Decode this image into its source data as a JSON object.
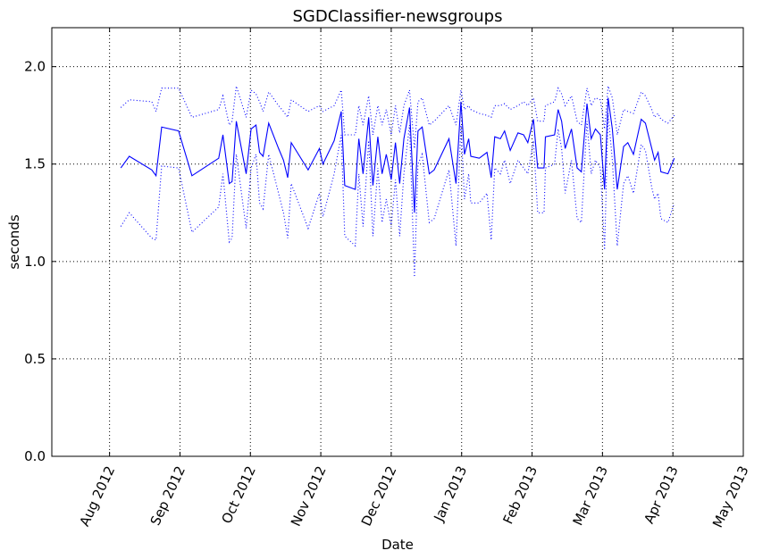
{
  "chart_data": {
    "type": "line",
    "title": "SGDClassifier-newsgroups",
    "x_label": "Date",
    "y_label": "seconds",
    "x": [
      0.16,
      0.28,
      0.6,
      0.66,
      0.74,
      0.98,
      1.17,
      1.55,
      1.61,
      1.7,
      1.74,
      1.8,
      1.94,
      2.01,
      2.08,
      2.13,
      2.18,
      2.26,
      2.4,
      2.47,
      2.53,
      2.58,
      2.82,
      2.98,
      3.03,
      3.19,
      3.29,
      3.34,
      3.49,
      3.54,
      3.6,
      3.68,
      3.74,
      3.81,
      3.87,
      3.93,
      4.0,
      4.06,
      4.12,
      4.18,
      4.26,
      4.33,
      4.38,
      4.44,
      4.54,
      4.61,
      4.82,
      4.92,
      4.99,
      5.04,
      5.1,
      5.13,
      5.25,
      5.36,
      5.42,
      5.47,
      5.55,
      5.61,
      5.69,
      5.8,
      5.88,
      5.94,
      6.02,
      6.08,
      6.17,
      6.19,
      6.32,
      6.37,
      6.42,
      6.47,
      6.56,
      6.64,
      6.7,
      6.78,
      6.84,
      6.9,
      6.97,
      7.03,
      7.08,
      7.14,
      7.21,
      7.3,
      7.36,
      7.44,
      7.55,
      7.61,
      7.7,
      7.74,
      7.79,
      7.83,
      7.93,
      8.02
    ],
    "series": [
      {
        "color": "#0000ff",
        "style": "solid",
        "values": [
          1.48,
          1.54,
          1.47,
          1.44,
          1.69,
          1.67,
          1.44,
          1.53,
          1.65,
          1.4,
          1.41,
          1.72,
          1.45,
          1.68,
          1.7,
          1.56,
          1.54,
          1.71,
          1.58,
          1.52,
          1.43,
          1.61,
          1.47,
          1.58,
          1.5,
          1.62,
          1.77,
          1.39,
          1.37,
          1.63,
          1.45,
          1.74,
          1.39,
          1.64,
          1.45,
          1.55,
          1.42,
          1.61,
          1.4,
          1.63,
          1.79,
          1.25,
          1.67,
          1.69,
          1.45,
          1.47,
          1.63,
          1.4,
          1.82,
          1.55,
          1.63,
          1.54,
          1.53,
          1.56,
          1.43,
          1.64,
          1.63,
          1.67,
          1.57,
          1.66,
          1.65,
          1.61,
          1.73,
          1.48,
          1.48,
          1.64,
          1.65,
          1.78,
          1.72,
          1.58,
          1.68,
          1.48,
          1.46,
          1.81,
          1.63,
          1.68,
          1.65,
          1.37,
          1.84,
          1.68,
          1.37,
          1.59,
          1.61,
          1.55,
          1.73,
          1.71,
          1.58,
          1.52,
          1.56,
          1.46,
          1.45,
          1.53
        ]
      },
      {
        "color": "#0000ff",
        "style": "dotted",
        "values": [
          1.79,
          1.83,
          1.82,
          1.77,
          1.89,
          1.89,
          1.74,
          1.78,
          1.85,
          1.7,
          1.72,
          1.9,
          1.74,
          1.88,
          1.86,
          1.82,
          1.77,
          1.87,
          1.8,
          1.77,
          1.74,
          1.83,
          1.77,
          1.8,
          1.77,
          1.8,
          1.88,
          1.65,
          1.65,
          1.8,
          1.7,
          1.85,
          1.65,
          1.8,
          1.7,
          1.78,
          1.65,
          1.8,
          1.66,
          1.8,
          1.88,
          1.58,
          1.82,
          1.84,
          1.7,
          1.72,
          1.8,
          1.7,
          1.88,
          1.78,
          1.8,
          1.78,
          1.76,
          1.75,
          1.74,
          1.8,
          1.8,
          1.81,
          1.78,
          1.8,
          1.82,
          1.8,
          1.84,
          1.72,
          1.72,
          1.8,
          1.82,
          1.89,
          1.86,
          1.8,
          1.85,
          1.72,
          1.7,
          1.89,
          1.8,
          1.84,
          1.83,
          1.68,
          1.9,
          1.84,
          1.65,
          1.78,
          1.77,
          1.76,
          1.87,
          1.85,
          1.78,
          1.74,
          1.76,
          1.73,
          1.71,
          1.75
        ]
      },
      {
        "color": "#0000ff",
        "style": "dotted",
        "values": [
          1.18,
          1.25,
          1.12,
          1.11,
          1.49,
          1.48,
          1.15,
          1.28,
          1.45,
          1.1,
          1.12,
          1.55,
          1.17,
          1.48,
          1.55,
          1.3,
          1.27,
          1.55,
          1.35,
          1.25,
          1.12,
          1.4,
          1.17,
          1.35,
          1.23,
          1.45,
          1.65,
          1.13,
          1.08,
          1.45,
          1.18,
          1.62,
          1.13,
          1.48,
          1.2,
          1.32,
          1.18,
          1.42,
          1.13,
          1.45,
          1.7,
          0.92,
          1.5,
          1.55,
          1.2,
          1.22,
          1.47,
          1.08,
          1.7,
          1.32,
          1.45,
          1.3,
          1.3,
          1.35,
          1.11,
          1.48,
          1.45,
          1.52,
          1.4,
          1.52,
          1.48,
          1.45,
          1.62,
          1.25,
          1.25,
          1.48,
          1.5,
          1.68,
          1.58,
          1.35,
          1.52,
          1.22,
          1.2,
          1.72,
          1.45,
          1.52,
          1.48,
          1.06,
          1.76,
          1.52,
          1.08,
          1.4,
          1.44,
          1.35,
          1.6,
          1.57,
          1.38,
          1.32,
          1.35,
          1.22,
          1.2,
          1.3
        ]
      }
    ],
    "xlim": [
      -0.82,
      9.0
    ],
    "xticks": [
      {
        "value": 0,
        "label": "Aug 2012"
      },
      {
        "value": 1,
        "label": "Sep 2012"
      },
      {
        "value": 2,
        "label": "Oct 2012"
      },
      {
        "value": 3,
        "label": "Nov 2012"
      },
      {
        "value": 4,
        "label": "Dec 2012"
      },
      {
        "value": 5,
        "label": "Jan 2013"
      },
      {
        "value": 6,
        "label": "Feb 2013"
      },
      {
        "value": 7,
        "label": "Mar 2013"
      },
      {
        "value": 8,
        "label": "Apr 2013"
      },
      {
        "value": 9,
        "label": "May 2013"
      }
    ],
    "ylim": [
      0,
      2.2
    ],
    "yticks": [
      {
        "value": 0,
        "label": "0.0"
      },
      0.5,
      {
        "value": 1,
        "label": "1.0"
      },
      1.5,
      {
        "value": 2,
        "label": "2.0"
      }
    ],
    "grid": true
  }
}
